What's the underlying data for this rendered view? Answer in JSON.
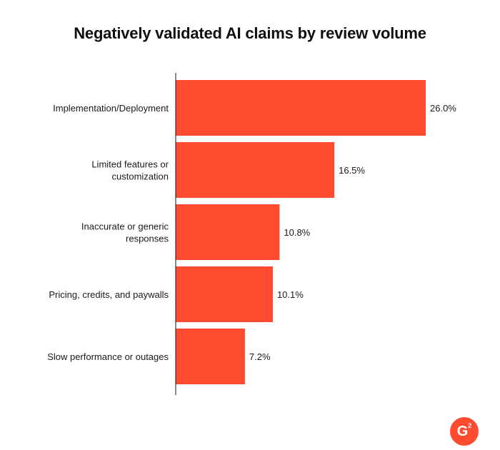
{
  "chart_data": {
    "type": "bar",
    "orientation": "horizontal",
    "title": "Negatively validated AI claims by review volume",
    "categories": [
      [
        "Implementation/Deployment"
      ],
      [
        "Limited features or",
        "customization"
      ],
      [
        "Inaccurate or generic",
        "responses"
      ],
      [
        "Pricing, credits, and paywalls"
      ],
      [
        "Slow performance or outages"
      ]
    ],
    "values": [
      26.0,
      16.5,
      10.8,
      10.1,
      7.2
    ],
    "value_labels": [
      "26.0%",
      "16.5%",
      "10.8%",
      "10.1%",
      "7.2%"
    ],
    "xlim": [
      0,
      26.0
    ],
    "grid": false,
    "bar_color": "#ff4b2f"
  },
  "branding": {
    "logo_text": "G",
    "logo_superscript": "2",
    "logo_color": "#ff4b2f"
  }
}
